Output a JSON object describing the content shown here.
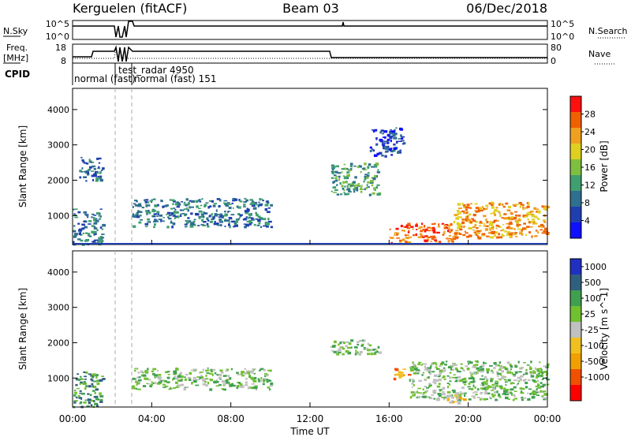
{
  "header": {
    "station": "Kerguelen (fitACF)",
    "beam": "Beam 03",
    "date": "06/Dec/2018"
  },
  "panels": {
    "nsky": {
      "left_label": "N.Sky",
      "right_label": "N.Search",
      "left_ticks": [
        "10^5",
        "10^0"
      ],
      "right_ticks": [
        "10^5",
        "10^0"
      ]
    },
    "freq": {
      "left_label_1": "Freq.",
      "left_label_2": "[MHz]",
      "right_label": "Nave",
      "left_ticks": [
        "18",
        "8"
      ],
      "right_ticks": [
        "80",
        "0"
      ]
    },
    "cpid": {
      "label": "CPID",
      "entries": [
        "normal (fast)",
        "test_radar 4950",
        "normal (fast) 151"
      ]
    }
  },
  "colors": {
    "power": [
      "#1010ff",
      "#1f3fb0",
      "#2f6f8f",
      "#3f9f6f",
      "#7fbf3f",
      "#dfd020",
      "#f0a020",
      "#f06000",
      "#ff1010"
    ],
    "velocity": [
      "#2030c0",
      "#306080",
      "#40a050",
      "#70c030",
      "#c0c0c0",
      "#f0c020",
      "#f0a000",
      "#f05000",
      "#ff0000"
    ]
  },
  "chart_data": [
    {
      "type": "heatmap",
      "parameter": "Power",
      "ylabel": "Slant Range [km]",
      "ytick_labels": [
        "1000",
        "2000",
        "3000",
        "4000"
      ],
      "ylim": [
        180,
        4600
      ],
      "xlim": [
        "00:00",
        "24:00"
      ],
      "colorbar_label": "Power [dB]",
      "colorbar_ticks": [
        "4",
        "8",
        "12",
        "16",
        "20",
        "24",
        "28"
      ],
      "colorbar_range": [
        0,
        32
      ],
      "regions": [
        {
          "t0": 0.0,
          "t1": 1.5,
          "r0": 200,
          "r1": 1200,
          "level": 8
        },
        {
          "t0": 0.3,
          "t1": 1.5,
          "r0": 2000,
          "r1": 2700,
          "level": 10
        },
        {
          "t0": 3.0,
          "t1": 10.0,
          "r0": 700,
          "r1": 1500,
          "level": 9
        },
        {
          "t0": 13.0,
          "t1": 15.5,
          "r0": 1600,
          "r1": 2500,
          "level": 12
        },
        {
          "t0": 15.0,
          "t1": 16.7,
          "r0": 2700,
          "r1": 3500,
          "level": 6
        },
        {
          "t0": 16.0,
          "t1": 19.2,
          "r0": 250,
          "r1": 800,
          "level": 28
        },
        {
          "t0": 19.2,
          "t1": 24.0,
          "r0": 400,
          "r1": 1400,
          "level": 24
        }
      ]
    },
    {
      "type": "heatmap",
      "parameter": "Velocity",
      "ylabel": "Slant Range [km]",
      "ytick_labels": [
        "1000",
        "2000",
        "3000",
        "4000"
      ],
      "ylim": [
        180,
        4600
      ],
      "xlim": [
        "00:00",
        "24:00"
      ],
      "xlabel": "Time UT",
      "xtick_labels": [
        "00:00",
        "04:00",
        "08:00",
        "12:00",
        "16:00",
        "20:00",
        "00:00"
      ],
      "colorbar_label": "Velocity [m s^-1]",
      "colorbar_ticks": [
        "1000",
        "500",
        "100",
        "25",
        "-25",
        "-100",
        "-500",
        "-1000"
      ],
      "regions": [
        {
          "t0": 0.0,
          "t1": 1.5,
          "r0": 200,
          "r1": 1200,
          "level": "100"
        },
        {
          "t0": 3.0,
          "t1": 10.0,
          "r0": 700,
          "r1": 1300,
          "level": "25"
        },
        {
          "t0": 13.0,
          "t1": 15.5,
          "r0": 1700,
          "r1": 2100,
          "level": "25"
        },
        {
          "t0": 16.2,
          "t1": 17.0,
          "r0": 1000,
          "r1": 1300,
          "level": "-500"
        },
        {
          "t0": 17.0,
          "t1": 24.0,
          "r0": 400,
          "r1": 1500,
          "level": "25"
        },
        {
          "t0": 18.8,
          "t1": 19.8,
          "r0": 300,
          "r1": 600,
          "level": "-100"
        }
      ]
    }
  ]
}
